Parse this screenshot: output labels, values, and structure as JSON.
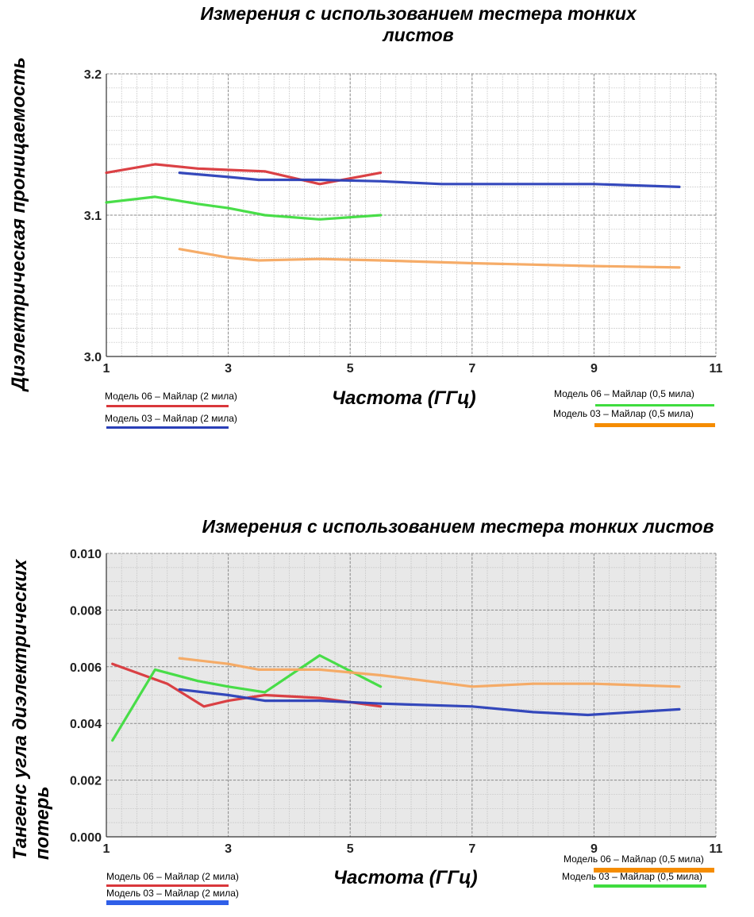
{
  "chart_data": [
    {
      "type": "line",
      "title": "Измерения с использованием тестера тонких листов",
      "xlabel": "Частота (ГГц)",
      "ylabel": "Диэлектрическая проницаемость",
      "xlim": [
        1,
        11
      ],
      "ylim": [
        3.0,
        3.2
      ],
      "xticks": [
        "1",
        "3",
        "5",
        "7",
        "9",
        "11"
      ],
      "yticks": [
        "3.0",
        "3.1",
        "3.2"
      ],
      "grid": true,
      "background": "#ffffff",
      "series": [
        {
          "name": "Модель 06 – Майлар (2 мила)",
          "color": "#d9373b",
          "x": [
            1.0,
            1.8,
            2.5,
            3.0,
            3.6,
            4.5,
            5.5
          ],
          "y": [
            3.13,
            3.136,
            3.133,
            3.132,
            3.131,
            3.122,
            3.13
          ]
        },
        {
          "name": "Модель 03 – Майлар (2 мила)",
          "color": "#2a3fb8",
          "x": [
            2.2,
            3.0,
            3.5,
            4.5,
            5.5,
            6.5,
            7.0,
            9.0,
            10.4
          ],
          "y": [
            3.13,
            3.127,
            3.125,
            3.125,
            3.124,
            3.122,
            3.122,
            3.122,
            3.12
          ]
        },
        {
          "name": "Модель 06 – Майлар (0,5 мила)",
          "color": "#3fdc3f",
          "x": [
            1.0,
            1.8,
            2.5,
            3.0,
            3.6,
            4.5,
            5.5
          ],
          "y": [
            3.109,
            3.113,
            3.108,
            3.105,
            3.1,
            3.097,
            3.1
          ]
        },
        {
          "name": "Модель 03 – Майлар (0,5 мила)",
          "color": "#f5a860",
          "x": [
            2.2,
            3.0,
            3.5,
            4.5,
            5.5,
            7.0,
            9.0,
            10.4
          ],
          "y": [
            3.076,
            3.07,
            3.068,
            3.069,
            3.068,
            3.066,
            3.064,
            3.063
          ]
        }
      ],
      "legend": [
        {
          "label": "Модель 06 – Майлар (2 мила)",
          "color": "#d9373b"
        },
        {
          "label": "Модель 03 – Майлар (2 мила)",
          "color": "#2a3fb8"
        },
        {
          "label": "Модель 06 – Майлар (0,5 мила)",
          "color": "#3fdc3f"
        },
        {
          "label": "Модель 03 – Майлар (0,5 мила)",
          "color": "#f58c00"
        }
      ]
    },
    {
      "type": "line",
      "title": "Измерения с использованием тестера тонких листов",
      "xlabel": "Частота (ГГц)",
      "ylabel": "Тангенс угла диэлектрических потерь",
      "xlim": [
        1,
        11
      ],
      "ylim": [
        0.0,
        0.01
      ],
      "xticks": [
        "1",
        "3",
        "5",
        "7",
        "9",
        "11"
      ],
      "yticks": [
        "0.000",
        "0.002",
        "0.004",
        "0.006",
        "0.008",
        "0.010"
      ],
      "grid": true,
      "background": "#e8e8e8",
      "series": [
        {
          "name": "Модель 06 – Майлар (2 мила)",
          "color": "#d9373b",
          "x": [
            1.1,
            2.0,
            2.6,
            3.0,
            3.6,
            4.5,
            5.5
          ],
          "y": [
            0.0061,
            0.0054,
            0.0046,
            0.0048,
            0.005,
            0.0049,
            0.0046
          ]
        },
        {
          "name": "Модель 03 – Майлар (2 мила)",
          "color": "#2a3fb8",
          "x": [
            2.2,
            3.0,
            3.6,
            4.5,
            5.5,
            7.0,
            8.0,
            8.9,
            10.4
          ],
          "y": [
            0.0052,
            0.005,
            0.0048,
            0.0048,
            0.0047,
            0.0046,
            0.0044,
            0.0043,
            0.0045
          ]
        },
        {
          "name": "Модель 06 – Майлар (0,5 мила)",
          "color": "#3fdc3f",
          "x": [
            1.1,
            1.8,
            2.5,
            3.0,
            3.6,
            4.5,
            5.5
          ],
          "y": [
            0.0034,
            0.0059,
            0.0055,
            0.0053,
            0.0051,
            0.0064,
            0.0053
          ]
        },
        {
          "name": "Модель 03 – Майлар (0,5 мила)",
          "color": "#f5a860",
          "x": [
            2.2,
            3.0,
            3.5,
            4.5,
            5.5,
            7.0,
            8.0,
            9.0,
            10.4
          ],
          "y": [
            0.0063,
            0.0061,
            0.0059,
            0.0059,
            0.0057,
            0.0053,
            0.0054,
            0.0054,
            0.0053
          ]
        }
      ],
      "legend": [
        {
          "label": "Модель 06 – Майлар (2 мила)",
          "color": "#d9373b"
        },
        {
          "label": "Модель 03 – Майлар (2 мила)",
          "color": "#2f5fe8"
        },
        {
          "label": "Модель 06 – Майлар (0,5 мила)",
          "color": "#f58c00"
        },
        {
          "label": "Модель 03 – Майлар (0,5 мила)",
          "color": "#3fdc3f"
        }
      ]
    }
  ]
}
